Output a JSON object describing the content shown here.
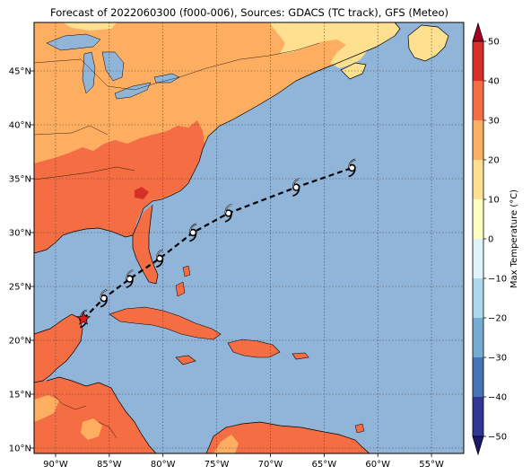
{
  "title": "Forecast of 2022060300 (f000-006), Sources: GDACS (TC track), GFS (Meteo)",
  "map": {
    "lon_range": [
      -92,
      -52
    ],
    "lat_range": [
      9.5,
      49.5
    ],
    "lon_ticks": [
      {
        "value": -90,
        "label": "90°W"
      },
      {
        "value": -85,
        "label": "85°W"
      },
      {
        "value": -80,
        "label": "80°W"
      },
      {
        "value": -75,
        "label": "75°W"
      },
      {
        "value": -70,
        "label": "70°W"
      },
      {
        "value": -65,
        "label": "65°W"
      },
      {
        "value": -60,
        "label": "60°W"
      },
      {
        "value": -55,
        "label": "55°W"
      }
    ],
    "lat_ticks": [
      {
        "value": 10,
        "label": "10°N"
      },
      {
        "value": 15,
        "label": "15°N"
      },
      {
        "value": 20,
        "label": "20°N"
      },
      {
        "value": 25,
        "label": "25°N"
      },
      {
        "value": 30,
        "label": "30°N"
      },
      {
        "value": 35,
        "label": "35°N"
      },
      {
        "value": 40,
        "label": "40°N"
      },
      {
        "value": 45,
        "label": "45°N"
      }
    ],
    "grid": true,
    "ocean_color": "#91b5d9",
    "land_colors": {
      "warm": "#f46d43",
      "mild": "#fdae61",
      "cool": "#fee090",
      "lake": "#91b5d9"
    }
  },
  "track": {
    "points": [
      {
        "lon": -87.4,
        "lat": 22.0
      },
      {
        "lon": -85.5,
        "lat": 23.9
      },
      {
        "lon": -83.1,
        "lat": 25.7
      },
      {
        "lon": -80.3,
        "lat": 27.6
      },
      {
        "lon": -77.2,
        "lat": 30.0
      },
      {
        "lon": -73.9,
        "lat": 31.8
      },
      {
        "lon": -67.6,
        "lat": 34.2
      },
      {
        "lon": -62.4,
        "lat": 36.0
      }
    ],
    "start_marker": "red-star",
    "symbol": "tropical-cyclone-icon"
  },
  "colorbar": {
    "label": "Max Temperature (°C)",
    "min": -50,
    "max": 50,
    "ticks": [
      {
        "value": 50,
        "label": "50"
      },
      {
        "value": 40,
        "label": "40"
      },
      {
        "value": 30,
        "label": "30"
      },
      {
        "value": 20,
        "label": "20"
      },
      {
        "value": 10,
        "label": "10"
      },
      {
        "value": 0,
        "label": "0"
      },
      {
        "value": -10,
        "label": "−10"
      },
      {
        "value": -20,
        "label": "−20"
      },
      {
        "value": -30,
        "label": "−30"
      },
      {
        "value": -40,
        "label": "−40"
      },
      {
        "value": -50,
        "label": "−50"
      }
    ],
    "bins": [
      {
        "from": -50,
        "to": -40,
        "color": "#313695"
      },
      {
        "from": -40,
        "to": -30,
        "color": "#4575b4"
      },
      {
        "from": -30,
        "to": -20,
        "color": "#74add1"
      },
      {
        "from": -20,
        "to": -10,
        "color": "#abd9e9"
      },
      {
        "from": -10,
        "to": 0,
        "color": "#e0f3f8"
      },
      {
        "from": 0,
        "to": 10,
        "color": "#ffffbf"
      },
      {
        "from": 10,
        "to": 20,
        "color": "#fee090"
      },
      {
        "from": 20,
        "to": 30,
        "color": "#fdae61"
      },
      {
        "from": 30,
        "to": 40,
        "color": "#f46d43"
      },
      {
        "from": 40,
        "to": 50,
        "color": "#d73027"
      }
    ],
    "extend_low_color": "#1a1a6e",
    "extend_high_color": "#a50026"
  }
}
